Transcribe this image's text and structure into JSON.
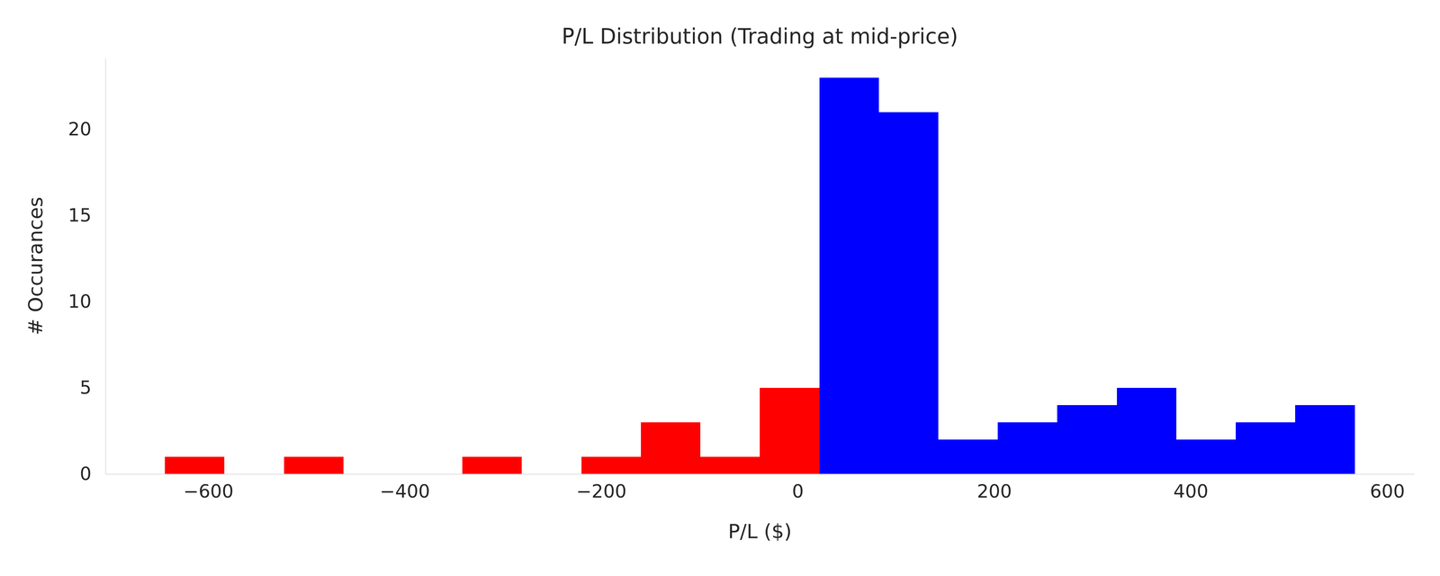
{
  "chart_data": {
    "type": "histogram",
    "title": "P/L Distribution (Trading at mid-price)",
    "x_label": "P/L ($)",
    "y_label": "# Occurances",
    "bins": [
      -644.0,
      -583.5,
      -523.0,
      -462.4,
      -401.9,
      -341.3,
      -280.8,
      -220.2,
      -159.7,
      -99.1,
      -38.6,
      22.0,
      82.5,
      143.1,
      203.6,
      264.2,
      324.7,
      385.3,
      445.8,
      506.4,
      567.0
    ],
    "values": [
      1,
      0,
      1,
      0,
      0,
      1,
      0,
      1,
      3,
      1,
      5,
      23,
      21,
      2,
      3,
      4,
      5,
      2,
      3,
      4
    ],
    "colors": [
      "#ff0000",
      "#ff0000",
      "#ff0000",
      "#ff0000",
      "#ff0000",
      "#ff0000",
      "#ff0000",
      "#ff0000",
      "#ff0000",
      "#ff0000",
      "#ff0000",
      "#0000ff",
      "#0000ff",
      "#0000ff",
      "#0000ff",
      "#0000ff",
      "#0000ff",
      "#0000ff",
      "#0000ff",
      "#0000ff"
    ],
    "xlim": [
      -704.6,
      627.6
    ],
    "ylim": [
      0,
      24.15
    ],
    "xticks": [
      -600,
      -400,
      -200,
      0,
      200,
      400,
      600
    ],
    "yticks": [
      0,
      5,
      10,
      15,
      20
    ],
    "grid": false
  }
}
